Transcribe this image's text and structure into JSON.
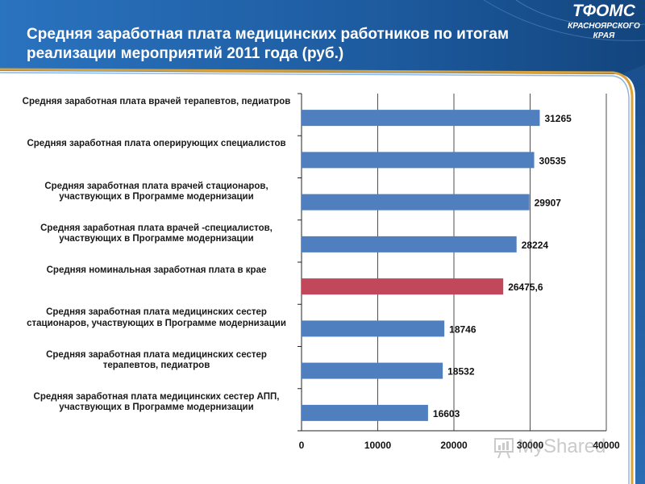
{
  "header": {
    "title": "Средняя заработная плата медицинских работников по итогам реализации мероприятий 2011 года (руб.)",
    "logo": "ТФОМС",
    "logo_sub_line1": "КРАСНОЯРСКОГО",
    "logo_sub_line2": "КРАЯ"
  },
  "colors": {
    "bar_default": "#4f7fbf",
    "bar_highlight": "#c0485a",
    "header_bg": "#1f5aa0",
    "accent_line": "#d9a23a"
  },
  "watermark": {
    "text": "MyShared"
  },
  "chart_data": {
    "type": "bar",
    "orientation": "horizontal",
    "title": "",
    "xlabel": "",
    "ylabel": "",
    "xlim": [
      0,
      40000
    ],
    "x_ticks": [
      "0",
      "10000",
      "20000",
      "30000",
      "40000"
    ],
    "grid": true,
    "highlight_index": 4,
    "categories": [
      "Средняя заработная плата врачей терапевтов, педиатров",
      "Средняя заработная плата оперирующих специалистов",
      "Средняя заработная плата врачей стационаров, участвующих в Программе модернизации",
      "Средняя заработная плата врачей -специалистов, участвующих в Программе модернизации",
      "Средняя номинальная заработная плата в крае",
      "Средняя  заработная плата медицинских сестер стационаров, участвующих в Программе модернизации",
      "Средняя заработная плата медицинских сестер терапевтов, педиатров",
      "Средняя заработная плата медицинских сестер АПП, участвующих в Программе модернизации"
    ],
    "values": [
      31265,
      30535,
      29907,
      28224,
      26475.6,
      18746,
      18532,
      16603
    ],
    "value_labels": [
      "31265",
      "30535",
      "29907",
      "28224",
      "26475,6",
      "18746",
      "18532",
      "16603"
    ]
  }
}
